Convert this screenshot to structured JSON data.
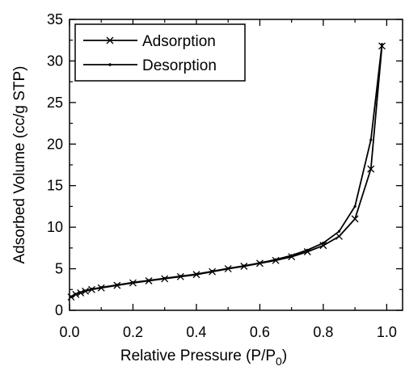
{
  "chart_data": {
    "type": "line",
    "xlabel": "Relative Pressure (P/P",
    "xlabel_sub": "0",
    "xlabel_end": ")",
    "ylabel": "Adsorbed Volume (cc/g STP)",
    "xlim": [
      0.0,
      1.05
    ],
    "ylim": [
      0,
      35
    ],
    "x_ticks": [
      "0.0",
      "0.2",
      "0.4",
      "0.6",
      "0.8",
      "1.0"
    ],
    "y_ticks": [
      "0",
      "5",
      "10",
      "15",
      "20",
      "25",
      "30",
      "35"
    ],
    "legend_position": "top-left",
    "series": [
      {
        "name": "Adsorption",
        "marker": "x",
        "x": [
          0.005,
          0.02,
          0.035,
          0.05,
          0.07,
          0.1,
          0.15,
          0.2,
          0.25,
          0.3,
          0.35,
          0.4,
          0.45,
          0.5,
          0.55,
          0.6,
          0.65,
          0.7,
          0.75,
          0.8,
          0.85,
          0.9,
          0.95,
          0.985
        ],
        "y": [
          1.6,
          1.9,
          2.1,
          2.3,
          2.5,
          2.7,
          3.0,
          3.3,
          3.55,
          3.8,
          4.05,
          4.3,
          4.65,
          5.0,
          5.3,
          5.65,
          6.0,
          6.45,
          7.05,
          7.8,
          8.9,
          11.0,
          17.0,
          31.8
        ]
      },
      {
        "name": "Desorption",
        "marker": "dot",
        "x": [
          0.005,
          0.02,
          0.035,
          0.05,
          0.07,
          0.1,
          0.15,
          0.2,
          0.25,
          0.3,
          0.35,
          0.4,
          0.45,
          0.5,
          0.55,
          0.6,
          0.65,
          0.7,
          0.75,
          0.8,
          0.85,
          0.9,
          0.95,
          0.985
        ],
        "y": [
          1.65,
          1.95,
          2.15,
          2.35,
          2.55,
          2.75,
          3.05,
          3.35,
          3.6,
          3.85,
          4.1,
          4.35,
          4.7,
          5.05,
          5.35,
          5.7,
          6.1,
          6.6,
          7.25,
          8.1,
          9.5,
          12.5,
          20.5,
          32.0
        ]
      }
    ]
  }
}
